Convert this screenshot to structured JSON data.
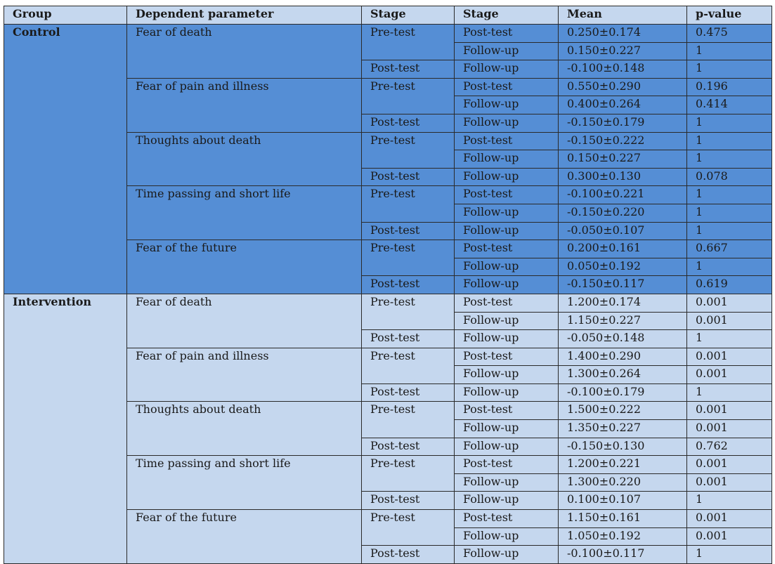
{
  "headers": [
    "Group",
    "Dependent parameter",
    "Stage",
    "Stage",
    "Mean",
    "p-value"
  ],
  "colors": {
    "control_bg": "#558ed5",
    "intervention_bg": "#c5d7ee",
    "header_bg": "#c5d7ee"
  },
  "groups": [
    {
      "name": "Control",
      "params": [
        {
          "name": "Fear of death",
          "rows": [
            {
              "stage1": "Pre-test",
              "stage2": "Post-test",
              "mean": "0.250±0.174",
              "p": "0.475"
            },
            {
              "stage1": "",
              "stage2": "Follow-up",
              "mean": "0.150±0.227",
              "p": "1"
            },
            {
              "stage1": "Post-test",
              "stage2": "Follow-up",
              "mean": "-0.100±0.148",
              "p": "1"
            }
          ]
        },
        {
          "name": "Fear of pain and illness",
          "rows": [
            {
              "stage1": "Pre-test",
              "stage2": "Post-test",
              "mean": "0.550±0.290",
              "p": "0.196"
            },
            {
              "stage1": "",
              "stage2": "Follow-up",
              "mean": "0.400±0.264",
              "p": "0.414"
            },
            {
              "stage1": "Post-test",
              "stage2": "Follow-up",
              "mean": "-0.150±0.179",
              "p": "1"
            }
          ]
        },
        {
          "name": "Thoughts about death",
          "rows": [
            {
              "stage1": "Pre-test",
              "stage2": "Post-test",
              "mean": "-0.150±0.222",
              "p": "1"
            },
            {
              "stage1": "",
              "stage2": "Follow-up",
              "mean": "0.150±0.227",
              "p": "1"
            },
            {
              "stage1": "Post-test",
              "stage2": "Follow-up",
              "mean": "0.300±0.130",
              "p": "0.078"
            }
          ]
        },
        {
          "name": "Time passing and short life",
          "rows": [
            {
              "stage1": "Pre-test",
              "stage2": "Post-test",
              "mean": "-0.100±0.221",
              "p": "1"
            },
            {
              "stage1": "",
              "stage2": "Follow-up",
              "mean": "-0.150±0.220",
              "p": "1"
            },
            {
              "stage1": "Post-test",
              "stage2": "Follow-up",
              "mean": "-0.050±0.107",
              "p": "1"
            }
          ]
        },
        {
          "name": "Fear of the future",
          "rows": [
            {
              "stage1": "Pre-test",
              "stage2": "Post-test",
              "mean": "0.200±0.161",
              "p": "0.667"
            },
            {
              "stage1": "",
              "stage2": "Follow-up",
              "mean": "0.050±0.192",
              "p": "1"
            },
            {
              "stage1": "Post-test",
              "stage2": "Follow-up",
              "mean": "-0.150±0.117",
              "p": "0.619"
            }
          ]
        }
      ]
    },
    {
      "name": "Intervention",
      "params": [
        {
          "name": "Fear of death",
          "rows": [
            {
              "stage1": "Pre-test",
              "stage2": "Post-test",
              "mean": "1.200±0.174",
              "p": "0.001"
            },
            {
              "stage1": "",
              "stage2": "Follow-up",
              "mean": "1.150±0.227",
              "p": "0.001"
            },
            {
              "stage1": "Post-test",
              "stage2": "Follow-up",
              "mean": "-0.050±0.148",
              "p": "1"
            }
          ]
        },
        {
          "name": "Fear of pain and illness",
          "rows": [
            {
              "stage1": "Pre-test",
              "stage2": "Post-test",
              "mean": "1.400±0.290",
              "p": "0.001"
            },
            {
              "stage1": "",
              "stage2": "Follow-up",
              "mean": "1.300±0.264",
              "p": "0.001"
            },
            {
              "stage1": "Post-test",
              "stage2": "Follow-up",
              "mean": "-0.100±0.179",
              "p": "1"
            }
          ]
        },
        {
          "name": "Thoughts about death",
          "rows": [
            {
              "stage1": "Pre-test",
              "stage2": "Post-test",
              "mean": "1.500±0.222",
              "p": "0.001"
            },
            {
              "stage1": "",
              "stage2": "Follow-up",
              "mean": "1.350±0.227",
              "p": "0.001"
            },
            {
              "stage1": "Post-test",
              "stage2": "Follow-up",
              "mean": "-0.150±0.130",
              "p": "0.762"
            }
          ]
        },
        {
          "name": "Time passing and short life",
          "rows": [
            {
              "stage1": "Pre-test",
              "stage2": "Post-test",
              "mean": "1.200±0.221",
              "p": "0.001"
            },
            {
              "stage1": "",
              "stage2": "Follow-up",
              "mean": "1.300±0.220",
              "p": "0.001"
            },
            {
              "stage1": "Post-test",
              "stage2": "Follow-up",
              "mean": "0.100±0.107",
              "p": "1"
            }
          ]
        },
        {
          "name": "Fear of the future",
          "rows": [
            {
              "stage1": "Pre-test",
              "stage2": "Post-test",
              "mean": "1.150±0.161",
              "p": "0.001"
            },
            {
              "stage1": "",
              "stage2": "Follow-up",
              "mean": "1.050±0.192",
              "p": "0.001"
            },
            {
              "stage1": "Post-test",
              "stage2": "Follow-up",
              "mean": "-0.100±0.117",
              "p": "1"
            }
          ]
        }
      ]
    }
  ]
}
